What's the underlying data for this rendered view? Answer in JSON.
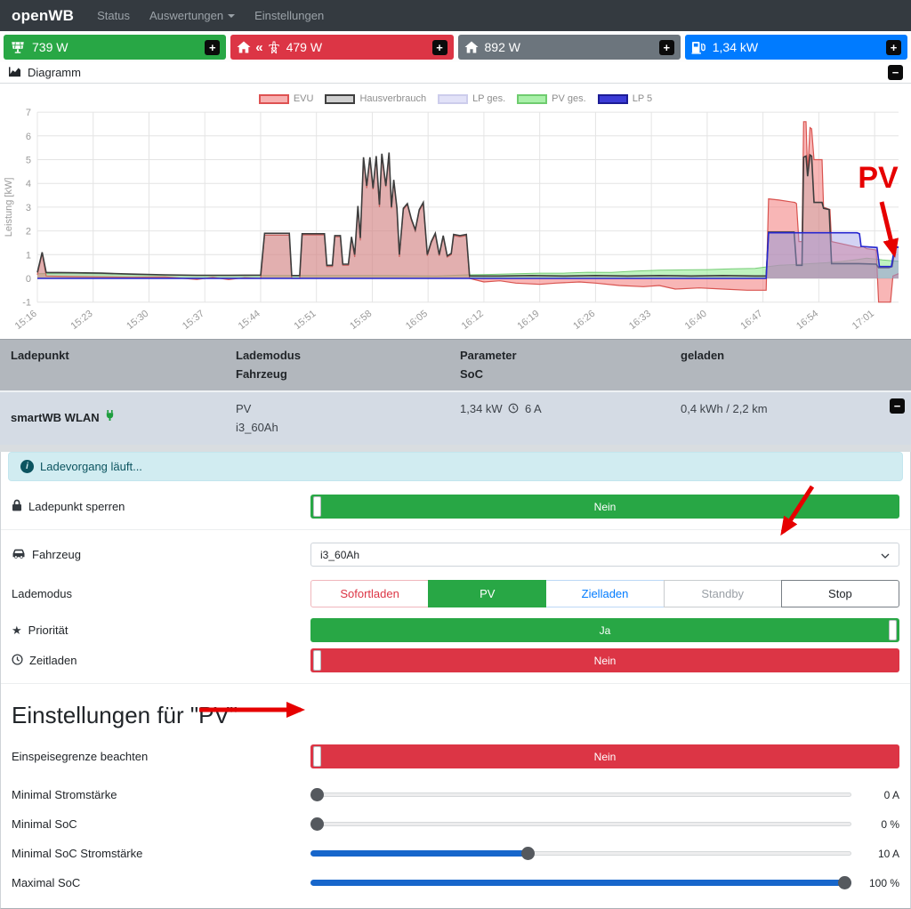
{
  "icons": {
    "plus_glyph": "+",
    "minus_glyph": "−",
    "angles_glyph": "«",
    "star_glyph": "★",
    "info_glyph": "i"
  },
  "navbar": {
    "brand": "openWB",
    "items": [
      {
        "label": "Status"
      },
      {
        "label": "Auswertungen"
      },
      {
        "label": "Einstellungen"
      }
    ]
  },
  "status_bar": {
    "items": [
      {
        "name": "pv-power",
        "icon": "solar-panel-icon",
        "value": "739 W",
        "color": "#28a745"
      },
      {
        "name": "grid-power",
        "icon": "house-grid-icon",
        "value": "479 W",
        "color": "#dc3545"
      },
      {
        "name": "house-power",
        "icon": "house-icon",
        "value": "892 W",
        "color": "#6c757d"
      },
      {
        "name": "chargepoint-power",
        "icon": "charging-station-icon",
        "value": "1,34 kW",
        "color": "#007bff"
      }
    ]
  },
  "diagram_card": {
    "title": "Diagramm"
  },
  "chart_data": {
    "type": "area",
    "title": "",
    "xlabel": "",
    "ylabel": "Leistung [kW]",
    "ylim": [
      -1,
      7
    ],
    "y_ticks": [
      7,
      6,
      5,
      4,
      3,
      2,
      1,
      0,
      -1
    ],
    "x_ticks": [
      "15:16",
      "15:23",
      "15:30",
      "15:37",
      "15:44",
      "15:51",
      "15:58",
      "16:05",
      "16:12",
      "16:19",
      "16:26",
      "16:33",
      "16:40",
      "16:47",
      "16:54",
      "17:01"
    ],
    "x_tick_interval_minutes": 7,
    "x_range_minutes": 108,
    "grid": true,
    "legend_position": "top-center",
    "legend": [
      {
        "label": "EVU",
        "swatch_fill": "#f7b0b0",
        "swatch_border": "#de5252"
      },
      {
        "label": "Hausverbrauch",
        "swatch_fill": "#cfcfcf",
        "swatch_border": "#3f3f3f"
      },
      {
        "label": "LP ges.",
        "swatch_fill": "#e2e2f8",
        "swatch_border": "#cdcdec"
      },
      {
        "label": "PV ges.",
        "swatch_fill": "#a9f0a9",
        "swatch_border": "#6fcc6f"
      },
      {
        "label": "LP 5",
        "swatch_fill": "#3b3bd6",
        "swatch_border": "#1c1c96"
      }
    ],
    "series": [
      {
        "name": "PV ges.",
        "stroke": "rgba(110,200,110,0.9)",
        "stroke_width": 1,
        "fill": "rgba(150,235,150,0.6)",
        "points": [
          [
            0,
            0.2
          ],
          [
            4,
            0.22
          ],
          [
            8,
            0.2
          ],
          [
            12,
            0.16
          ],
          [
            16,
            0.13
          ],
          [
            20,
            0.12
          ],
          [
            26,
            0.12
          ],
          [
            32,
            0.12
          ],
          [
            38,
            0.12
          ],
          [
            44,
            0.12
          ],
          [
            50,
            0.1
          ],
          [
            54,
            0.15
          ],
          [
            57,
            0.17
          ],
          [
            60,
            0.2
          ],
          [
            63,
            0.22
          ],
          [
            66,
            0.22
          ],
          [
            69,
            0.26
          ],
          [
            72,
            0.25
          ],
          [
            75,
            0.31
          ],
          [
            78,
            0.35
          ],
          [
            81,
            0.36
          ],
          [
            84,
            0.37
          ],
          [
            87,
            0.4
          ],
          [
            90,
            0.42
          ],
          [
            91.7,
            0.5
          ],
          [
            93,
            0.55
          ],
          [
            95,
            0.58
          ],
          [
            97,
            0.62
          ],
          [
            99,
            0.66
          ],
          [
            101,
            0.72
          ],
          [
            103,
            0.8
          ],
          [
            104,
            0.85
          ],
          [
            105,
            0.82
          ],
          [
            106,
            0.78
          ],
          [
            107,
            0.75
          ],
          [
            108,
            0.72
          ]
        ]
      },
      {
        "name": "EVU",
        "stroke": "#d9534f",
        "stroke_width": 1.2,
        "fill": "rgba(242,122,122,0.55)",
        "points": [
          [
            0,
            0.15
          ],
          [
            0.6,
            1.05
          ],
          [
            1.1,
            0.1
          ],
          [
            4,
            0.08
          ],
          [
            8,
            0.06
          ],
          [
            12,
            0.05
          ],
          [
            16,
            0.06
          ],
          [
            20,
            -0.04
          ],
          [
            22,
            0.04
          ],
          [
            24,
            -0.05
          ],
          [
            26,
            0.03
          ],
          [
            28,
            0
          ],
          [
            28.5,
            1.82
          ],
          [
            31.6,
            1.82
          ],
          [
            31.9,
            0
          ],
          [
            32.9,
            0
          ],
          [
            33.2,
            1.83
          ],
          [
            36,
            1.83
          ],
          [
            36.3,
            0.5
          ],
          [
            37,
            0.5
          ],
          [
            37.3,
            1.75
          ],
          [
            38,
            1.75
          ],
          [
            38.3,
            0.55
          ],
          [
            39,
            0.55
          ],
          [
            39.4,
            1.7
          ],
          [
            39.8,
            0.9
          ],
          [
            40.2,
            3.0
          ],
          [
            40.5,
            1.6
          ],
          [
            40.9,
            5.05
          ],
          [
            41.3,
            3.8
          ],
          [
            41.7,
            5.05
          ],
          [
            42.1,
            3.75
          ],
          [
            42.5,
            5.1
          ],
          [
            42.9,
            3.0
          ],
          [
            43.2,
            5.2
          ],
          [
            43.7,
            3.85
          ],
          [
            44.1,
            5.25
          ],
          [
            44.4,
            2.95
          ],
          [
            44.7,
            4.1
          ],
          [
            45.1,
            2.9
          ],
          [
            45.4,
            0.9
          ],
          [
            45.9,
            2.9
          ],
          [
            46.4,
            3.1
          ],
          [
            46.9,
            2.45
          ],
          [
            47.4,
            2.0
          ],
          [
            47.9,
            2.85
          ],
          [
            48.4,
            3.15
          ],
          [
            48.9,
            0.95
          ],
          [
            49.4,
            1.5
          ],
          [
            49.9,
            1.85
          ],
          [
            50.4,
            0.95
          ],
          [
            50.9,
            1.75
          ],
          [
            51.4,
            0.9
          ],
          [
            51.9,
            1.0
          ],
          [
            52.2,
            1.8
          ],
          [
            53,
            1.75
          ],
          [
            53.8,
            1.8
          ],
          [
            54.2,
            0
          ],
          [
            56,
            -0.15
          ],
          [
            58,
            -0.1
          ],
          [
            60,
            -0.2
          ],
          [
            63,
            -0.25
          ],
          [
            65,
            -0.2
          ],
          [
            68,
            -0.15
          ],
          [
            70,
            -0.2
          ],
          [
            73,
            -0.3
          ],
          [
            76,
            -0.35
          ],
          [
            78,
            -0.3
          ],
          [
            80,
            -0.45
          ],
          [
            83,
            -0.4
          ],
          [
            86,
            -0.45
          ],
          [
            89,
            -0.5
          ],
          [
            91.4,
            -0.5
          ],
          [
            91.7,
            3.35
          ],
          [
            93,
            3.3
          ],
          [
            95,
            3.2
          ],
          [
            95.2,
            3.15
          ],
          [
            95.5,
            1.55
          ],
          [
            95.9,
            1.55
          ],
          [
            96.1,
            6.6
          ],
          [
            96.4,
            6.6
          ],
          [
            96.6,
            4.4
          ],
          [
            96.9,
            6.35
          ],
          [
            97.1,
            6.3
          ],
          [
            97.4,
            5.0
          ],
          [
            98.4,
            5.0
          ],
          [
            98.6,
            3.0
          ],
          [
            99.4,
            2.9
          ],
          [
            99.6,
            1.55
          ],
          [
            101,
            1.45
          ],
          [
            103,
            1.3
          ],
          [
            103.5,
            1.35
          ],
          [
            104,
            1.25
          ],
          [
            105.2,
            1.2
          ],
          [
            105.5,
            -1.0
          ],
          [
            107,
            -1.0
          ],
          [
            107.3,
            0.1
          ],
          [
            108,
            0.2
          ]
        ]
      },
      {
        "name": "Hausverbrauch",
        "stroke": "#3d3d3d",
        "stroke_width": 1.6,
        "fill": "rgba(150,150,150,0.22)",
        "points": [
          [
            0,
            0.25
          ],
          [
            0.6,
            1.1
          ],
          [
            1.1,
            0.25
          ],
          [
            4,
            0.24
          ],
          [
            8,
            0.22
          ],
          [
            12,
            0.18
          ],
          [
            16,
            0.15
          ],
          [
            20,
            0.13
          ],
          [
            24,
            0.13
          ],
          [
            28,
            0.14
          ],
          [
            28.5,
            1.9
          ],
          [
            31.6,
            1.9
          ],
          [
            31.9,
            0.12
          ],
          [
            32.9,
            0.12
          ],
          [
            33.2,
            1.88
          ],
          [
            36,
            1.88
          ],
          [
            36.3,
            0.55
          ],
          [
            37,
            0.55
          ],
          [
            37.3,
            1.8
          ],
          [
            38,
            1.8
          ],
          [
            38.3,
            0.6
          ],
          [
            39,
            0.6
          ],
          [
            39.4,
            1.75
          ],
          [
            39.8,
            1.0
          ],
          [
            40.2,
            3.05
          ],
          [
            40.5,
            1.7
          ],
          [
            40.9,
            5.1
          ],
          [
            41.3,
            3.9
          ],
          [
            41.7,
            5.1
          ],
          [
            42.1,
            3.8
          ],
          [
            42.5,
            5.15
          ],
          [
            42.9,
            3.1
          ],
          [
            43.2,
            5.25
          ],
          [
            43.7,
            3.9
          ],
          [
            44.1,
            5.3
          ],
          [
            44.4,
            3.0
          ],
          [
            44.7,
            4.15
          ],
          [
            45.1,
            2.95
          ],
          [
            45.4,
            1.0
          ],
          [
            45.9,
            2.95
          ],
          [
            46.4,
            3.15
          ],
          [
            46.9,
            2.5
          ],
          [
            47.4,
            2.05
          ],
          [
            47.9,
            2.9
          ],
          [
            48.4,
            3.2
          ],
          [
            48.9,
            1.0
          ],
          [
            49.4,
            1.55
          ],
          [
            49.9,
            1.9
          ],
          [
            50.4,
            1.0
          ],
          [
            50.9,
            1.8
          ],
          [
            51.4,
            0.95
          ],
          [
            51.9,
            1.05
          ],
          [
            52.2,
            1.85
          ],
          [
            53,
            1.8
          ],
          [
            53.8,
            1.85
          ],
          [
            54.2,
            0.1
          ],
          [
            58,
            0.1
          ],
          [
            62,
            0.12
          ],
          [
            66,
            0.1
          ],
          [
            70,
            0.12
          ],
          [
            74,
            0.1
          ],
          [
            78,
            0.12
          ],
          [
            82,
            0.1
          ],
          [
            86,
            0.12
          ],
          [
            90,
            0.1
          ],
          [
            91.4,
            0.1
          ],
          [
            91.7,
            1.95
          ],
          [
            94.9,
            1.95
          ],
          [
            95.2,
            0.55
          ],
          [
            95.9,
            0.55
          ],
          [
            96.1,
            5.1
          ],
          [
            96.4,
            5.15
          ],
          [
            96.6,
            4.3
          ],
          [
            96.9,
            5.2
          ],
          [
            97.1,
            5.15
          ],
          [
            97.4,
            3.2
          ],
          [
            98.4,
            3.2
          ],
          [
            98.6,
            2.95
          ],
          [
            99.3,
            2.9
          ],
          [
            99.6,
            0.62
          ],
          [
            103,
            0.62
          ],
          [
            105.2,
            0.6
          ],
          [
            105.5,
            0.45
          ],
          [
            106.8,
            0.45
          ],
          [
            107.2,
            0.5
          ],
          [
            107.6,
            1.35
          ],
          [
            108,
            1.3
          ]
        ]
      },
      {
        "name": "LP ges.",
        "stroke": "rgba(175,175,225,0.9)",
        "stroke_width": 1,
        "fill": "rgba(195,195,238,0.35)",
        "points": [
          [
            0,
            0
          ],
          [
            91.4,
            0
          ],
          [
            91.7,
            1.92
          ],
          [
            102.8,
            1.92
          ],
          [
            103.1,
            1.88
          ],
          [
            103.3,
            1.35
          ],
          [
            105.3,
            1.3
          ],
          [
            105.6,
            0.5
          ],
          [
            107.1,
            0.5
          ],
          [
            107.5,
            1.3
          ],
          [
            108,
            1.32
          ]
        ]
      },
      {
        "name": "LP 5",
        "stroke": "#2626cf",
        "stroke_width": 1.6,
        "fill": "rgba(80,80,210,0.15)",
        "points": [
          [
            0,
            0
          ],
          [
            91.4,
            0
          ],
          [
            91.7,
            1.92
          ],
          [
            102.8,
            1.92
          ],
          [
            103.1,
            1.88
          ],
          [
            103.3,
            1.35
          ],
          [
            105.3,
            1.3
          ],
          [
            105.6,
            0.5
          ],
          [
            107.1,
            0.5
          ],
          [
            107.5,
            1.3
          ],
          [
            108,
            1.32
          ]
        ]
      }
    ]
  },
  "ladepunkt_table": {
    "headers": {
      "col1": "Ladepunkt",
      "col2a": "Lademodus",
      "col2b": "Fahrzeug",
      "col3a": "Parameter",
      "col3b": "SoC",
      "col4": "geladen"
    },
    "row": {
      "name": "smartWB WLAN",
      "mode": "PV",
      "vehicle": "i3_60Ah",
      "parameter_power": "1,34 kW",
      "parameter_current": "6 A",
      "charged": "0,4 kWh / 2,2 km"
    }
  },
  "alert": {
    "text": "Ladevorgang läuft..."
  },
  "controls": {
    "lock": {
      "label": "Ladepunkt sperren",
      "value": "Nein",
      "color": "#28a745"
    },
    "vehicle": {
      "label": "Fahrzeug",
      "value": "i3_60Ah"
    },
    "chargemode": {
      "label": "Lademodus",
      "selected": "PV",
      "options": [
        {
          "label": "Sofortladen"
        },
        {
          "label": "PV"
        },
        {
          "label": "Zielladen"
        },
        {
          "label": "Standby"
        },
        {
          "label": "Stop"
        }
      ]
    },
    "priority": {
      "label": "Priorität",
      "value": "Ja",
      "color": "#28a745"
    },
    "timecharge": {
      "label": "Zeitladen",
      "value": "Nein",
      "color": "#dc3545"
    }
  },
  "pv_settings": {
    "heading": "Einstellungen für \"PV\"",
    "feedin": {
      "label": "Einspeisegrenze beachten",
      "value": "Nein",
      "color": "#dc3545"
    },
    "sliders": [
      {
        "label": "Minimal Stromstärke",
        "value": "0 A",
        "percent": 0
      },
      {
        "label": "Minimal SoC",
        "value": "0 %",
        "percent": 0
      },
      {
        "label": "Minimal SoC Stromstärke",
        "value": "10 A",
        "percent": 40
      },
      {
        "label": "Maximal SoC",
        "value": "100 %",
        "percent": 100
      }
    ],
    "accent_color": "#1766cb"
  },
  "annotations": {
    "pv_label": "PV",
    "arrow_color": "#e60000"
  }
}
